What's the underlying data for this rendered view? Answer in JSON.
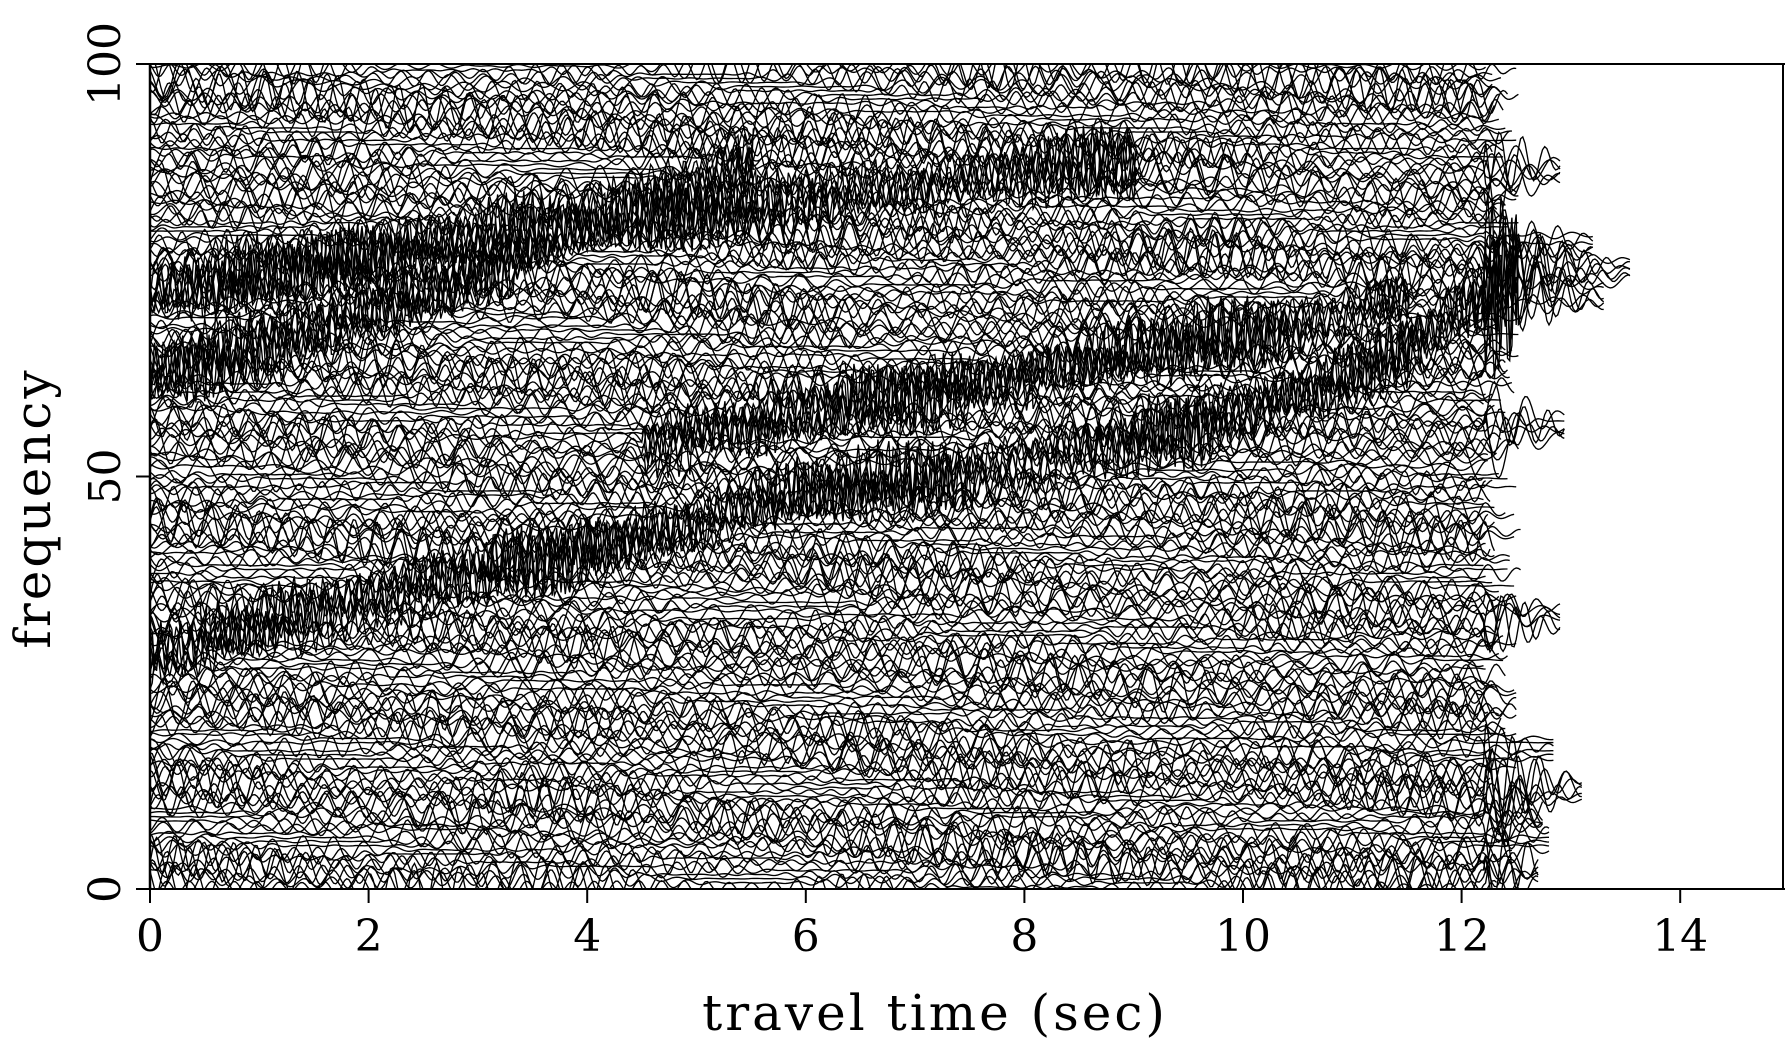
{
  "chart_data": {
    "type": "line",
    "xlabel": "travel time (sec)",
    "ylabel": "frequency",
    "xlim": [
      0,
      15
    ],
    "ylim": [
      0,
      100
    ],
    "x_ticks": [
      "0",
      "2",
      "4",
      "6",
      "8",
      "10",
      "12",
      "14"
    ],
    "y_ticks": [
      "0",
      "50",
      "100"
    ],
    "grid": false,
    "legend": "none",
    "trace_count": 200,
    "signal_end_sec": 12.2,
    "colors": {
      "trace": "#000000",
      "background": "#ffffff"
    },
    "ridges": [
      {
        "points": [
          [
            0,
            28
          ],
          [
            1.5,
            34
          ],
          [
            4,
            41
          ],
          [
            6,
            48
          ],
          [
            9,
            54
          ],
          [
            11,
            62
          ],
          [
            12.5,
            74
          ]
        ]
      },
      {
        "points": [
          [
            0,
            62
          ],
          [
            1,
            66
          ],
          [
            2.5,
            72
          ],
          [
            4,
            80
          ],
          [
            5.5,
            88
          ]
        ]
      },
      {
        "points": [
          [
            0,
            72
          ],
          [
            3,
            79
          ],
          [
            6,
            84
          ],
          [
            9,
            88
          ]
        ]
      },
      {
        "points": [
          [
            4.5,
            54
          ],
          [
            7,
            60
          ],
          [
            9.5,
            66
          ],
          [
            11.5,
            71
          ]
        ]
      }
    ],
    "edge_spikes": [
      {
        "freq": 75,
        "time": 13.55
      },
      {
        "freq": 72,
        "time": 13.3
      },
      {
        "freq": 78,
        "time": 13.2
      },
      {
        "freq": 87,
        "time": 12.9
      },
      {
        "freq": 56,
        "time": 12.95
      },
      {
        "freq": 33,
        "time": 12.9
      },
      {
        "freq": 17,
        "time": 12.85
      },
      {
        "freq": 12,
        "time": 13.1
      },
      {
        "freq": 9,
        "time": 12.75
      },
      {
        "freq": 6,
        "time": 12.8
      },
      {
        "freq": 2,
        "time": 12.7
      }
    ]
  }
}
